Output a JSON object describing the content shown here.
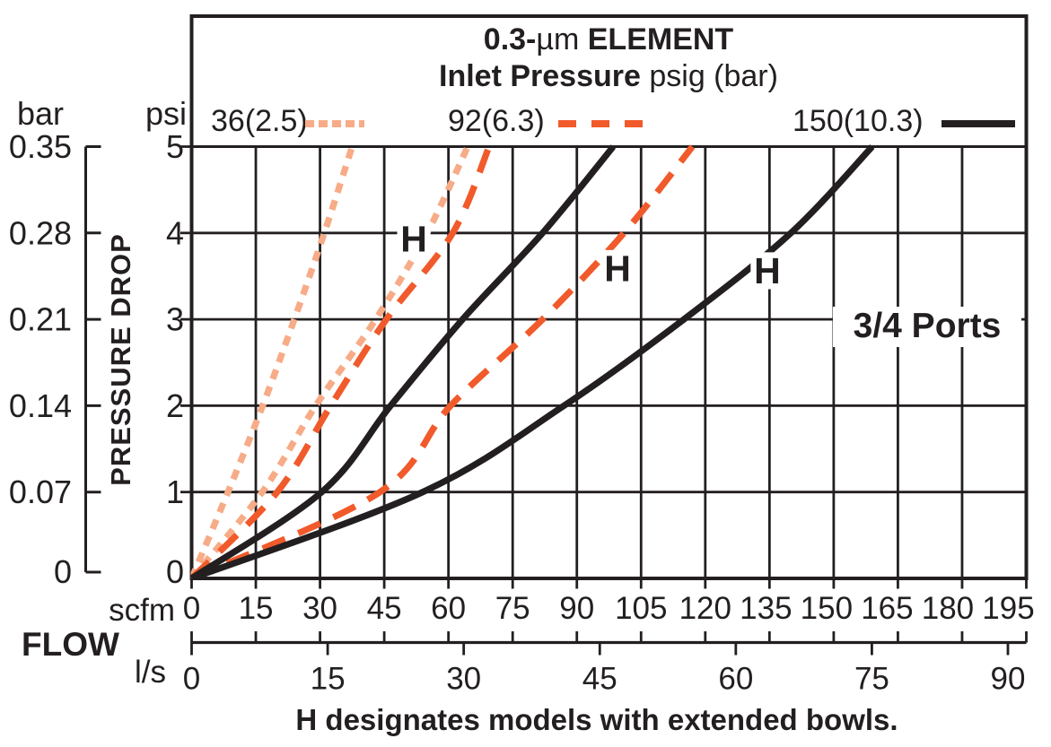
{
  "chart_data": {
    "type": "line",
    "title": "0.3-µm ELEMENT",
    "subtitle": "Inlet Pressure psig (bar)",
    "title_parts": {
      "bold_prefix": "0.3-",
      "unit": "µm",
      "bold_suffix": " ELEMENT"
    },
    "subtitle_parts": {
      "bold": "Inlet Pressure",
      "normal": " psig (bar)"
    },
    "xlabel": "FLOW",
    "ylabel": "PRESSURE DROP",
    "x_units": {
      "primary": "scfm",
      "secondary": "l/s",
      "scfm_per_ls": 2.1189
    },
    "y_units": {
      "primary": "psi",
      "secondary": "bar"
    },
    "x_ticks_scfm": [
      0,
      15,
      30,
      45,
      60,
      75,
      90,
      105,
      120,
      135,
      150,
      165,
      180,
      195
    ],
    "x_ticks_ls": [
      0,
      15,
      30,
      45,
      60,
      75,
      90
    ],
    "y_ticks_psi": [
      0,
      1,
      2,
      3,
      4,
      5
    ],
    "y_ticks_bar": [
      "0",
      "0.07",
      "0.14",
      "0.21",
      "0.28",
      "0.35"
    ],
    "xlim_scfm": [
      0,
      195
    ],
    "ylim_psi": [
      0,
      5
    ],
    "grid": true,
    "legend_position": "top",
    "ink_color": "#231F20",
    "legend": [
      {
        "label": "36(2.5)",
        "color": "#F7AB87",
        "line": "dotted"
      },
      {
        "label": "92(6.3)",
        "color": "#F15A2B",
        "line": "dashed"
      },
      {
        "label": "150(10.3)",
        "color": "#231F20",
        "line": "solid"
      }
    ],
    "series": [
      {
        "name": "36(2.5)",
        "model": "standard",
        "color": "#F7AB87",
        "line": "dotted",
        "points_scfm_psi": [
          [
            0,
            0
          ],
          [
            8.5,
            1
          ],
          [
            16.6,
            2
          ],
          [
            24,
            3
          ],
          [
            31,
            4
          ],
          [
            37.5,
            5
          ]
        ]
      },
      {
        "name": "36(2.5) H",
        "model": "extended-bowl",
        "color": "#F7AB87",
        "line": "dotted",
        "points_scfm_psi": [
          [
            0,
            0
          ],
          [
            16.5,
            1
          ],
          [
            29,
            2
          ],
          [
            43,
            3
          ],
          [
            55,
            4
          ],
          [
            64.5,
            5
          ]
        ]
      },
      {
        "name": "92(6.3)",
        "model": "standard",
        "color": "#F15A2B",
        "line": "dashed",
        "points_scfm_psi": [
          [
            0,
            0
          ],
          [
            20,
            1
          ],
          [
            32.5,
            2
          ],
          [
            45.5,
            3
          ],
          [
            61,
            4
          ],
          [
            69.5,
            5
          ]
        ]
      },
      {
        "name": "92(6.3) H",
        "model": "extended-bowl",
        "color": "#F15A2B",
        "line": "dashed",
        "points_scfm_psi": [
          [
            0,
            0
          ],
          [
            44,
            1
          ],
          [
            60.5,
            2
          ],
          [
            82,
            3
          ],
          [
            101,
            4
          ],
          [
            117,
            5
          ]
        ]
      },
      {
        "name": "150(10.3)",
        "model": "standard",
        "color": "#231F20",
        "line": "solid",
        "points_scfm_psi": [
          [
            0,
            0
          ],
          [
            30.4,
            1
          ],
          [
            46.5,
            2
          ],
          [
            63.3,
            3
          ],
          [
            82,
            4
          ],
          [
            98.5,
            5
          ]
        ]
      },
      {
        "name": "150(10.3) H",
        "model": "extended-bowl",
        "color": "#231F20",
        "line": "solid",
        "points_scfm_psi": [
          [
            0,
            0
          ],
          [
            54,
            1
          ],
          [
            87,
            2
          ],
          [
            115,
            3
          ],
          [
            140,
            4
          ],
          [
            159,
            5
          ]
        ]
      }
    ],
    "annotations": [
      {
        "text": "H",
        "scfm": 51.9,
        "psi": 3.93
      },
      {
        "text": "H",
        "scfm": 99.5,
        "psi": 3.59
      },
      {
        "text": "H",
        "scfm": 134.5,
        "psi": 3.56
      },
      {
        "text": "3/4 Ports",
        "scfm": 171.8,
        "psi": 2.93
      }
    ],
    "caption": "H designates models with extended bowls."
  }
}
